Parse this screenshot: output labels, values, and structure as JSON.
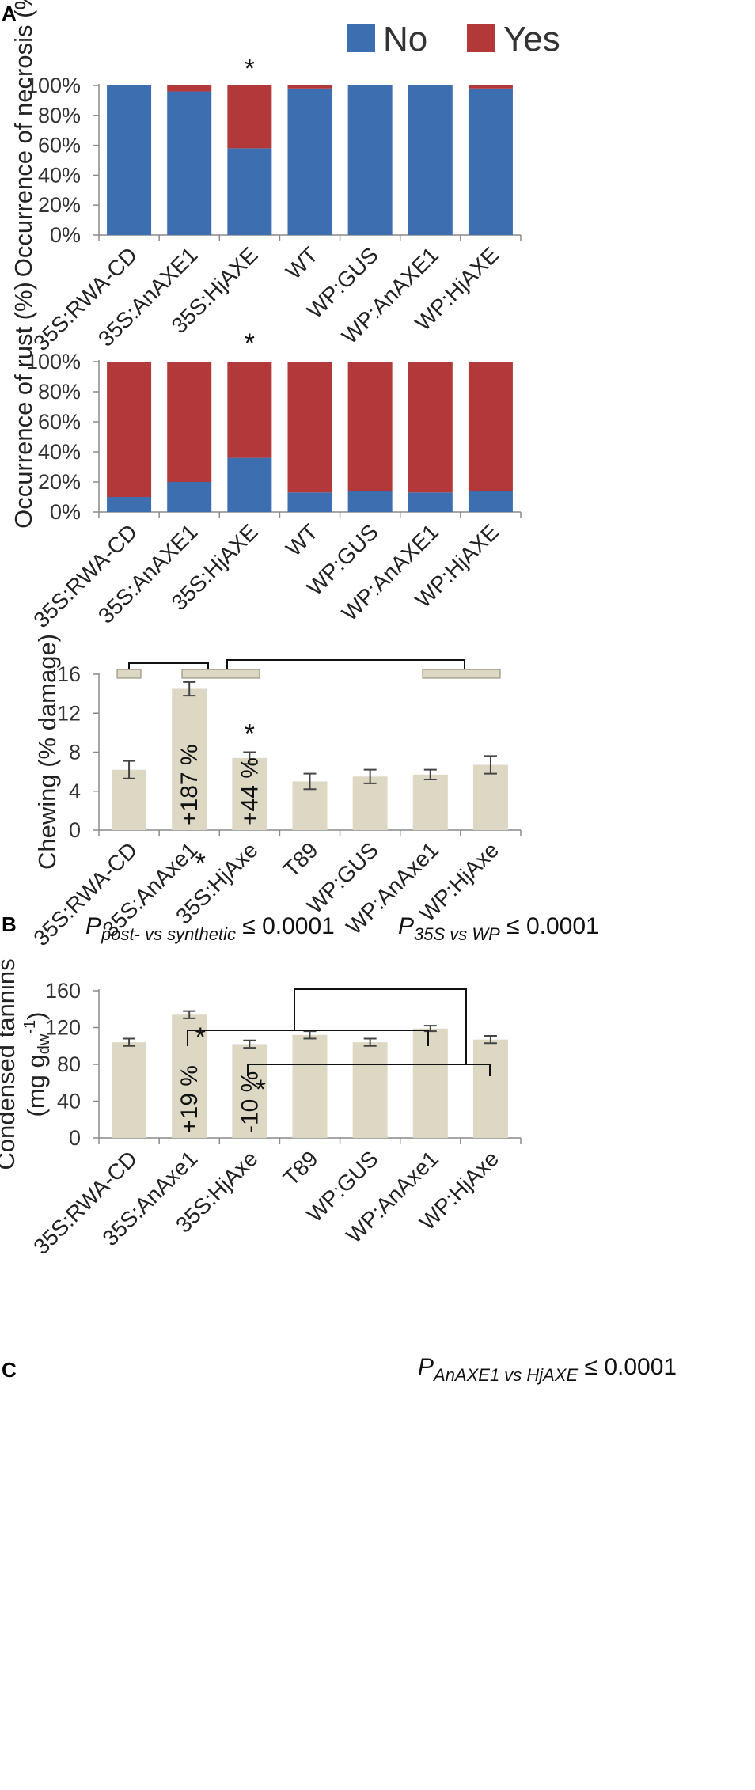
{
  "colors": {
    "no": "#3d6eb0",
    "yes": "#b3383a",
    "chew": "#ddd8c4",
    "chewEdge": "#8a8470",
    "axis": "#8a8a8a",
    "err": "#444444"
  },
  "panel_labels": {
    "A": "A",
    "B": "B",
    "C": "C"
  },
  "legend": {
    "no": "No",
    "yes": "Yes"
  },
  "chart_data": [
    {
      "id": "necrosis",
      "type": "bar",
      "stacked": true,
      "ylabel": "Occurrence of necrosis (%)",
      "ylim": [
        0,
        100
      ],
      "yticks": [
        "0%",
        "20%",
        "40%",
        "60%",
        "80%",
        "100%"
      ],
      "categories": [
        "35S:RWA-CD",
        "35S:AnAXE1",
        "35S:HjAXE",
        "WT",
        "WP:GUS",
        "WP:AnAXE1",
        "WP:HjAXE"
      ],
      "series": [
        {
          "name": "No",
          "values": [
            100,
            96,
            58,
            98,
            100,
            100,
            98
          ]
        },
        {
          "name": "Yes",
          "values": [
            0,
            4,
            42,
            2,
            0,
            0,
            2
          ]
        }
      ],
      "annotations": [
        {
          "category": "35S:HjAXE",
          "text": "*"
        }
      ]
    },
    {
      "id": "rust",
      "type": "bar",
      "stacked": true,
      "ylabel": "Occurrence of rust (%)",
      "ylim": [
        0,
        100
      ],
      "yticks": [
        "0%",
        "20%",
        "40%",
        "60%",
        "80%",
        "100%"
      ],
      "categories": [
        "35S:RWA-CD",
        "35S:AnAXE1",
        "35S:HjAXE",
        "WT",
        "WP:GUS",
        "WP:AnAXE1",
        "WP:HjAXE"
      ],
      "series": [
        {
          "name": "No",
          "values": [
            10,
            20,
            36,
            13,
            14,
            13,
            14
          ]
        },
        {
          "name": "Yes",
          "values": [
            90,
            80,
            64,
            87,
            86,
            87,
            86
          ]
        }
      ],
      "annotations": [
        {
          "category": "35S:HjAXE",
          "text": "*"
        }
      ]
    },
    {
      "id": "chewing",
      "type": "bar",
      "ylabel": "Chewing (% damage)",
      "ylim": [
        0,
        16
      ],
      "yticks": [
        "0",
        "4",
        "8",
        "12",
        "16"
      ],
      "categories": [
        "35S:RWA-CD",
        "35S:AnAxe1",
        "35S:HjAxe",
        "T89",
        "WP:GUS",
        "WP:AnAxe1",
        "WP:HjAxe"
      ],
      "values": [
        6.2,
        14.5,
        7.4,
        5.0,
        5.5,
        5.7,
        6.7
      ],
      "errors": [
        0.9,
        0.7,
        0.6,
        0.8,
        0.7,
        0.5,
        0.9
      ],
      "stars": [
        "",
        "*",
        "*",
        "",
        "",
        "",
        ""
      ],
      "pct_labels": [
        "",
        "+187 %",
        "+44 %",
        "",
        "",
        "",
        ""
      ],
      "comparisons": [
        {
          "label_main": "P",
          "label_sub": "post- vs synthetic",
          "label_rest": " ≤ 0.0001"
        },
        {
          "label_main": "P",
          "label_sub": "35S vs WP",
          "label_rest": " ≤ 0.0001"
        }
      ]
    },
    {
      "id": "tannins",
      "type": "bar",
      "ylabel": "Condensed tannins",
      "ylabel2": "(mg g",
      "ylabel2_sub": "dw",
      "ylabel2_sup": "-1",
      "ylabel2_end": ")",
      "ylim": [
        0,
        160
      ],
      "yticks": [
        "0",
        "40",
        "80",
        "120",
        "160"
      ],
      "categories": [
        "35S:RWA-CD",
        "35S:AnAxe1",
        "35S:HjAxe",
        "T89",
        "WP:GUS",
        "WP:AnAxe1",
        "WP:HjAxe"
      ],
      "values": [
        104,
        134,
        102,
        112,
        104,
        119,
        107
      ],
      "errors": [
        4,
        4,
        4,
        4,
        4,
        3,
        4
      ],
      "stars": [
        "",
        "*",
        "*",
        "",
        "",
        "",
        ""
      ],
      "pct_labels": [
        "",
        "+19 %",
        "-10 %",
        "",
        "",
        "",
        ""
      ],
      "comparisons": [
        {
          "label_main": "P",
          "label_sub": "AnAXE1 vs HjAXE",
          "label_rest": " ≤ 0.0001"
        }
      ]
    }
  ]
}
